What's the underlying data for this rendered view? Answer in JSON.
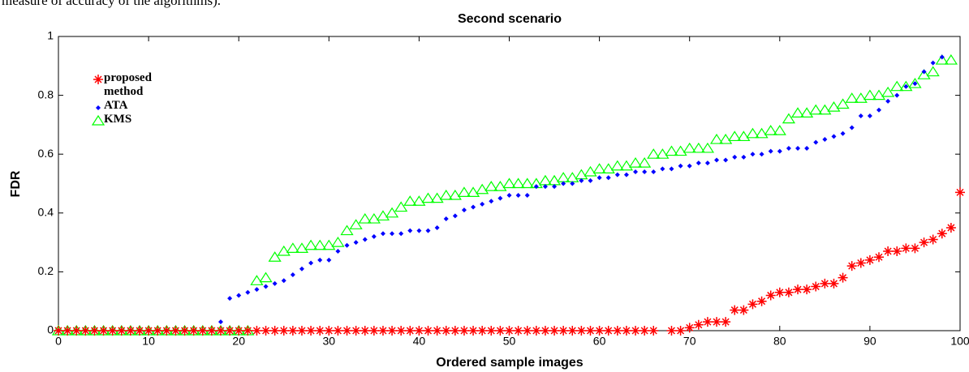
{
  "header_text": "measure of accuracy of the algorithms).",
  "chart_data": {
    "type": "scatter",
    "title": "Second scenario",
    "x_label": "Ordered sample images",
    "y_label": "FDR",
    "x": [
      0,
      1,
      2,
      3,
      4,
      5,
      6,
      7,
      8,
      9,
      10,
      11,
      12,
      13,
      14,
      15,
      16,
      17,
      18,
      19,
      20,
      21,
      22,
      23,
      24,
      25,
      26,
      27,
      28,
      29,
      30,
      31,
      32,
      33,
      34,
      35,
      36,
      37,
      38,
      39,
      40,
      41,
      42,
      43,
      44,
      45,
      46,
      47,
      48,
      49,
      50,
      51,
      52,
      53,
      54,
      55,
      56,
      57,
      58,
      59,
      60,
      61,
      62,
      63,
      64,
      65,
      66,
      67,
      68,
      69,
      70,
      71,
      72,
      73,
      74,
      75,
      76,
      77,
      78,
      79,
      80,
      81,
      82,
      83,
      84,
      85,
      86,
      87,
      88,
      89,
      90,
      91,
      92,
      93,
      94,
      95,
      96,
      97,
      98,
      99,
      100
    ],
    "series": [
      {
        "name": "proposed method",
        "color": "#ff0000",
        "marker": "star",
        "values": [
          0,
          0,
          0,
          0,
          0,
          0,
          0,
          0,
          0,
          0,
          0,
          0,
          0,
          0,
          0,
          0,
          0,
          0,
          0,
          0,
          0,
          0,
          0,
          0,
          0,
          0,
          0,
          0,
          0,
          0,
          0,
          0,
          0,
          0,
          0,
          0,
          0,
          0,
          0,
          0,
          0,
          0,
          0,
          0,
          0,
          0,
          0,
          0,
          0,
          0,
          0,
          0,
          0,
          0,
          0,
          0,
          0,
          0,
          0,
          0,
          0,
          0,
          0,
          0,
          0,
          0,
          0,
          null,
          0,
          0,
          0.01,
          0.02,
          0.03,
          0.03,
          0.03,
          0.07,
          0.07,
          0.09,
          0.1,
          0.12,
          0.13,
          0.13,
          0.14,
          0.14,
          0.15,
          0.16,
          0.16,
          0.18,
          0.22,
          0.23,
          0.24,
          0.25,
          0.27,
          0.27,
          0.28,
          0.28,
          0.3,
          0.31,
          0.33,
          0.35,
          0.47
        ]
      },
      {
        "name": "ATA",
        "color": "#0000ff",
        "marker": "diamond",
        "values": [
          0,
          0,
          0,
          0,
          0,
          0,
          0,
          0,
          0,
          0,
          0,
          0,
          0,
          0,
          0,
          0,
          0,
          0,
          0.03,
          0.11,
          0.12,
          0.13,
          0.14,
          0.15,
          0.16,
          0.17,
          0.19,
          0.21,
          0.23,
          0.24,
          0.24,
          0.27,
          0.29,
          0.3,
          0.31,
          0.32,
          0.33,
          0.33,
          0.33,
          0.34,
          0.34,
          0.34,
          0.35,
          0.38,
          0.39,
          0.41,
          0.42,
          0.43,
          0.44,
          0.45,
          0.46,
          0.46,
          0.46,
          0.49,
          0.49,
          0.49,
          0.5,
          0.5,
          0.51,
          0.51,
          0.52,
          0.52,
          0.53,
          0.53,
          0.54,
          0.54,
          0.54,
          0.55,
          0.55,
          0.56,
          0.56,
          0.57,
          0.57,
          0.58,
          0.58,
          0.59,
          0.59,
          0.6,
          0.6,
          0.61,
          0.61,
          0.62,
          0.62,
          0.62,
          0.64,
          0.65,
          0.66,
          0.67,
          0.69,
          0.73,
          0.73,
          0.75,
          0.78,
          0.8,
          0.83,
          0.84,
          0.88,
          0.91,
          0.93,
          null,
          null
        ]
      },
      {
        "name": "KMS",
        "color": "#00ff00",
        "marker": "triangle",
        "values": [
          0,
          0,
          0,
          0,
          0,
          0,
          0,
          0,
          0,
          0,
          0,
          0,
          0,
          0,
          0,
          0,
          0,
          0,
          0,
          0,
          0,
          0,
          0.17,
          0.18,
          0.25,
          0.27,
          0.28,
          0.28,
          0.29,
          0.29,
          0.29,
          0.3,
          0.34,
          0.36,
          0.38,
          0.38,
          0.39,
          0.4,
          0.42,
          0.44,
          0.44,
          0.45,
          0.45,
          0.46,
          0.46,
          0.47,
          0.47,
          0.48,
          0.49,
          0.49,
          0.5,
          0.5,
          0.5,
          0.5,
          0.51,
          0.51,
          0.52,
          0.52,
          0.53,
          0.54,
          0.55,
          0.55,
          0.56,
          0.56,
          0.57,
          0.57,
          0.6,
          0.6,
          0.61,
          0.61,
          0.62,
          0.62,
          0.62,
          0.65,
          0.65,
          0.66,
          0.66,
          0.67,
          0.67,
          0.68,
          0.68,
          0.72,
          0.74,
          0.74,
          0.75,
          0.75,
          0.76,
          0.77,
          0.79,
          0.79,
          0.8,
          0.8,
          0.81,
          0.83,
          0.83,
          0.84,
          0.87,
          0.88,
          0.92,
          0.92,
          null
        ]
      }
    ],
    "xlim": [
      0,
      100
    ],
    "xticks": [
      0,
      10,
      20,
      30,
      40,
      50,
      60,
      70,
      80,
      90,
      100
    ],
    "ylim": [
      0,
      1
    ],
    "yticks": [
      0,
      0.2,
      0.4,
      0.6,
      0.8,
      1
    ],
    "grid": false
  }
}
